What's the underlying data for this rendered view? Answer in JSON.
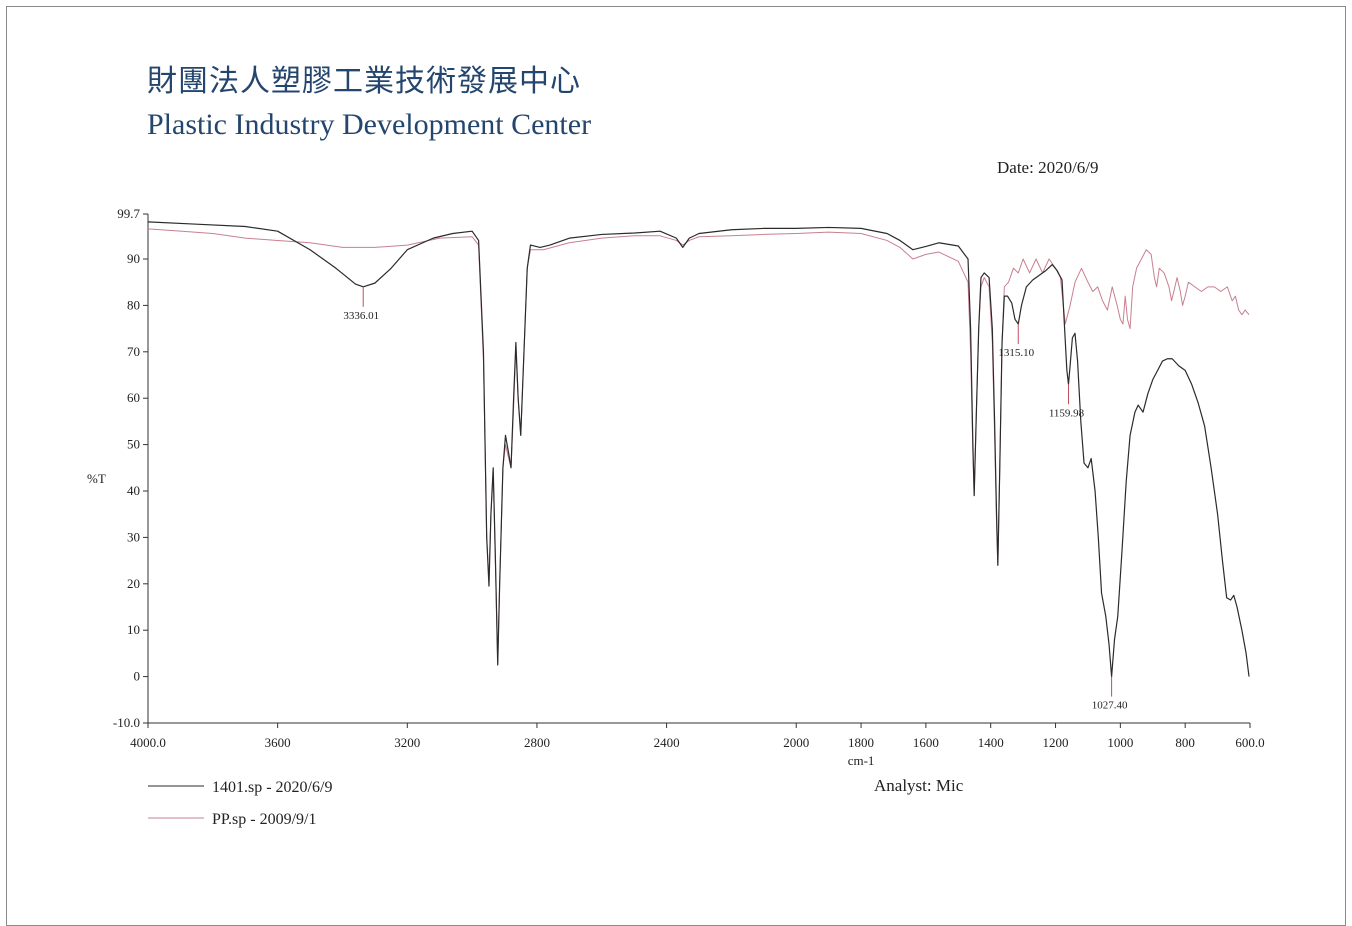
{
  "header": {
    "org_cn": "財團法人塑膠工業技術發展中心",
    "org_en": "Plastic Industry Development Center",
    "date": "Date: 2020/6/9"
  },
  "footer": {
    "analyst": "Analyst: Mic"
  },
  "colors": {
    "series1": "#2b2b2b",
    "series2": "#c97f8f",
    "peak_mark": "#c05060",
    "axis": "#333333",
    "title": "#24466e"
  },
  "chart_data": {
    "type": "line",
    "xlabel": "cm-1",
    "ylabel": "%T",
    "xlim": [
      4000,
      600
    ],
    "ylim": [
      -10,
      99.7
    ],
    "x_ticks": [
      4000,
      3600,
      3200,
      2800,
      2400,
      2000,
      1800,
      1600,
      1400,
      1200,
      1000,
      800,
      600
    ],
    "x_tick_labels": [
      "4000.0",
      "3600",
      "3200",
      "2800",
      "2400",
      "2000",
      "1800",
      "1600",
      "1400",
      "1200",
      "1000",
      "800",
      "600.0"
    ],
    "y_ticks": [
      99.7,
      90,
      80,
      70,
      60,
      50,
      40,
      30,
      20,
      10,
      0,
      -10
    ],
    "y_tick_labels": [
      "99.7",
      "90",
      "80",
      "70",
      "60",
      "50",
      "40",
      "30",
      "20",
      "10",
      "0",
      "-10.0"
    ],
    "legend_position": "bottom-left",
    "grid": false,
    "series": [
      {
        "name": "1401.sp - 2020/6/9",
        "color": "#2b2b2b",
        "points": [
          [
            4000,
            98
          ],
          [
            3850,
            97.5
          ],
          [
            3700,
            97
          ],
          [
            3600,
            96
          ],
          [
            3500,
            92
          ],
          [
            3420,
            88
          ],
          [
            3360,
            84.6
          ],
          [
            3336,
            84
          ],
          [
            3300,
            84.8
          ],
          [
            3250,
            88
          ],
          [
            3200,
            92
          ],
          [
            3120,
            94.5
          ],
          [
            3060,
            95.5
          ],
          [
            3000,
            96
          ],
          [
            2980,
            94
          ],
          [
            2965,
            70
          ],
          [
            2955,
            30
          ],
          [
            2948,
            19.5
          ],
          [
            2942,
            35
          ],
          [
            2935,
            45
          ],
          [
            2928,
            25
          ],
          [
            2921,
            2.5
          ],
          [
            2915,
            20
          ],
          [
            2905,
            45
          ],
          [
            2897,
            52
          ],
          [
            2887,
            48
          ],
          [
            2880,
            45
          ],
          [
            2872,
            60
          ],
          [
            2865,
            72
          ],
          [
            2858,
            60
          ],
          [
            2850,
            52
          ],
          [
            2840,
            70
          ],
          [
            2830,
            88
          ],
          [
            2820,
            93
          ],
          [
            2790,
            92.5
          ],
          [
            2760,
            93
          ],
          [
            2700,
            94.5
          ],
          [
            2600,
            95.3
          ],
          [
            2500,
            95.6
          ],
          [
            2420,
            96
          ],
          [
            2370,
            94.5
          ],
          [
            2350,
            92.5
          ],
          [
            2330,
            94.5
          ],
          [
            2300,
            95.5
          ],
          [
            2200,
            96.3
          ],
          [
            2100,
            96.6
          ],
          [
            2000,
            96.6
          ],
          [
            1900,
            96.8
          ],
          [
            1800,
            96.6
          ],
          [
            1720,
            95.5
          ],
          [
            1680,
            94
          ],
          [
            1640,
            92
          ],
          [
            1600,
            92.7
          ],
          [
            1560,
            93.5
          ],
          [
            1500,
            92.8
          ],
          [
            1470,
            90
          ],
          [
            1462,
            75
          ],
          [
            1455,
            50
          ],
          [
            1451,
            39
          ],
          [
            1445,
            55
          ],
          [
            1437,
            75
          ],
          [
            1430,
            86
          ],
          [
            1420,
            87
          ],
          [
            1405,
            86
          ],
          [
            1395,
            75
          ],
          [
            1388,
            55
          ],
          [
            1382,
            35
          ],
          [
            1378,
            24
          ],
          [
            1372,
            45
          ],
          [
            1365,
            72
          ],
          [
            1358,
            82
          ],
          [
            1348,
            82
          ],
          [
            1335,
            80.5
          ],
          [
            1325,
            77
          ],
          [
            1315,
            76
          ],
          [
            1305,
            80
          ],
          [
            1290,
            84
          ],
          [
            1270,
            85.5
          ],
          [
            1250,
            86.5
          ],
          [
            1230,
            87.5
          ],
          [
            1210,
            88.8
          ],
          [
            1195,
            87.5
          ],
          [
            1180,
            85.5
          ],
          [
            1172,
            75
          ],
          [
            1165,
            66
          ],
          [
            1160,
            63
          ],
          [
            1155,
            67
          ],
          [
            1148,
            73
          ],
          [
            1140,
            74
          ],
          [
            1132,
            68
          ],
          [
            1122,
            55
          ],
          [
            1112,
            46
          ],
          [
            1100,
            45
          ],
          [
            1090,
            47
          ],
          [
            1078,
            40
          ],
          [
            1068,
            30
          ],
          [
            1058,
            18
          ],
          [
            1045,
            13
          ],
          [
            1035,
            7
          ],
          [
            1027,
            0
          ],
          [
            1018,
            8
          ],
          [
            1008,
            13
          ],
          [
            995,
            27
          ],
          [
            982,
            42
          ],
          [
            970,
            52
          ],
          [
            955,
            57
          ],
          [
            945,
            58.5
          ],
          [
            930,
            57
          ],
          [
            915,
            61
          ],
          [
            900,
            64
          ],
          [
            885,
            66
          ],
          [
            870,
            68
          ],
          [
            855,
            68.5
          ],
          [
            840,
            68.5
          ],
          [
            820,
            67
          ],
          [
            800,
            66
          ],
          [
            780,
            63
          ],
          [
            760,
            59
          ],
          [
            740,
            54
          ],
          [
            720,
            45
          ],
          [
            700,
            35
          ],
          [
            685,
            25
          ],
          [
            672,
            17
          ],
          [
            660,
            16.5
          ],
          [
            650,
            17.5
          ],
          [
            640,
            15
          ],
          [
            625,
            10
          ],
          [
            612,
            5
          ],
          [
            603,
            0
          ]
        ]
      },
      {
        "name": "PP.sp - 2009/9/1",
        "color": "#c97f8f",
        "points": [
          [
            4000,
            96.5
          ],
          [
            3900,
            96
          ],
          [
            3800,
            95.5
          ],
          [
            3700,
            94.5
          ],
          [
            3600,
            94
          ],
          [
            3500,
            93.5
          ],
          [
            3400,
            92.5
          ],
          [
            3300,
            92.5
          ],
          [
            3200,
            93
          ],
          [
            3100,
            94.5
          ],
          [
            3000,
            94.8
          ],
          [
            2980,
            93
          ],
          [
            2965,
            68
          ],
          [
            2955,
            30
          ],
          [
            2948,
            21
          ],
          [
            2942,
            35
          ],
          [
            2935,
            44
          ],
          [
            2928,
            24
          ],
          [
            2921,
            3
          ],
          [
            2915,
            20
          ],
          [
            2905,
            45
          ],
          [
            2897,
            50
          ],
          [
            2887,
            47
          ],
          [
            2880,
            45
          ],
          [
            2872,
            58
          ],
          [
            2865,
            71
          ],
          [
            2858,
            60
          ],
          [
            2850,
            52
          ],
          [
            2840,
            70
          ],
          [
            2830,
            88
          ],
          [
            2820,
            92
          ],
          [
            2780,
            92
          ],
          [
            2700,
            93.5
          ],
          [
            2600,
            94.5
          ],
          [
            2500,
            95
          ],
          [
            2420,
            95
          ],
          [
            2370,
            94
          ],
          [
            2350,
            93
          ],
          [
            2330,
            94
          ],
          [
            2300,
            94.8
          ],
          [
            2200,
            95
          ],
          [
            2100,
            95.3
          ],
          [
            2000,
            95.5
          ],
          [
            1900,
            95.8
          ],
          [
            1800,
            95.5
          ],
          [
            1720,
            94
          ],
          [
            1680,
            92.5
          ],
          [
            1640,
            90
          ],
          [
            1600,
            91
          ],
          [
            1560,
            91.5
          ],
          [
            1500,
            89.5
          ],
          [
            1470,
            85
          ],
          [
            1462,
            70
          ],
          [
            1455,
            48
          ],
          [
            1451,
            39
          ],
          [
            1445,
            55
          ],
          [
            1437,
            75
          ],
          [
            1430,
            84
          ],
          [
            1420,
            86
          ],
          [
            1405,
            84
          ],
          [
            1395,
            72
          ],
          [
            1388,
            52
          ],
          [
            1382,
            33
          ],
          [
            1378,
            24
          ],
          [
            1372,
            45
          ],
          [
            1365,
            72
          ],
          [
            1358,
            84
          ],
          [
            1345,
            85
          ],
          [
            1330,
            88
          ],
          [
            1315,
            87
          ],
          [
            1300,
            90
          ],
          [
            1280,
            87
          ],
          [
            1260,
            90
          ],
          [
            1240,
            87
          ],
          [
            1220,
            90
          ],
          [
            1200,
            88
          ],
          [
            1185,
            86
          ],
          [
            1170,
            76
          ],
          [
            1155,
            80
          ],
          [
            1140,
            85
          ],
          [
            1120,
            88
          ],
          [
            1100,
            85
          ],
          [
            1085,
            83
          ],
          [
            1070,
            84
          ],
          [
            1055,
            81
          ],
          [
            1040,
            79
          ],
          [
            1025,
            84
          ],
          [
            1010,
            80
          ],
          [
            1000,
            77
          ],
          [
            992,
            76
          ],
          [
            985,
            82
          ],
          [
            978,
            77
          ],
          [
            970,
            75
          ],
          [
            962,
            84
          ],
          [
            950,
            88
          ],
          [
            935,
            90
          ],
          [
            920,
            92
          ],
          [
            905,
            91
          ],
          [
            895,
            86
          ],
          [
            888,
            84
          ],
          [
            880,
            88
          ],
          [
            865,
            87
          ],
          [
            850,
            84
          ],
          [
            842,
            81
          ],
          [
            835,
            83
          ],
          [
            825,
            86
          ],
          [
            815,
            83
          ],
          [
            808,
            80
          ],
          [
            800,
            82
          ],
          [
            790,
            85
          ],
          [
            770,
            84
          ],
          [
            750,
            83
          ],
          [
            730,
            84
          ],
          [
            710,
            84
          ],
          [
            690,
            83
          ],
          [
            670,
            84
          ],
          [
            655,
            81
          ],
          [
            645,
            82
          ],
          [
            635,
            79
          ],
          [
            625,
            78
          ],
          [
            615,
            79
          ],
          [
            603,
            78
          ]
        ]
      }
    ],
    "annotations": [
      {
        "label": "3336.01",
        "x": 3336,
        "y": 84
      },
      {
        "label": "1315.10",
        "x": 1315,
        "y": 76
      },
      {
        "label": "1159.98",
        "x": 1160,
        "y": 63
      },
      {
        "label": "1027.40",
        "x": 1027,
        "y": 0
      }
    ]
  }
}
